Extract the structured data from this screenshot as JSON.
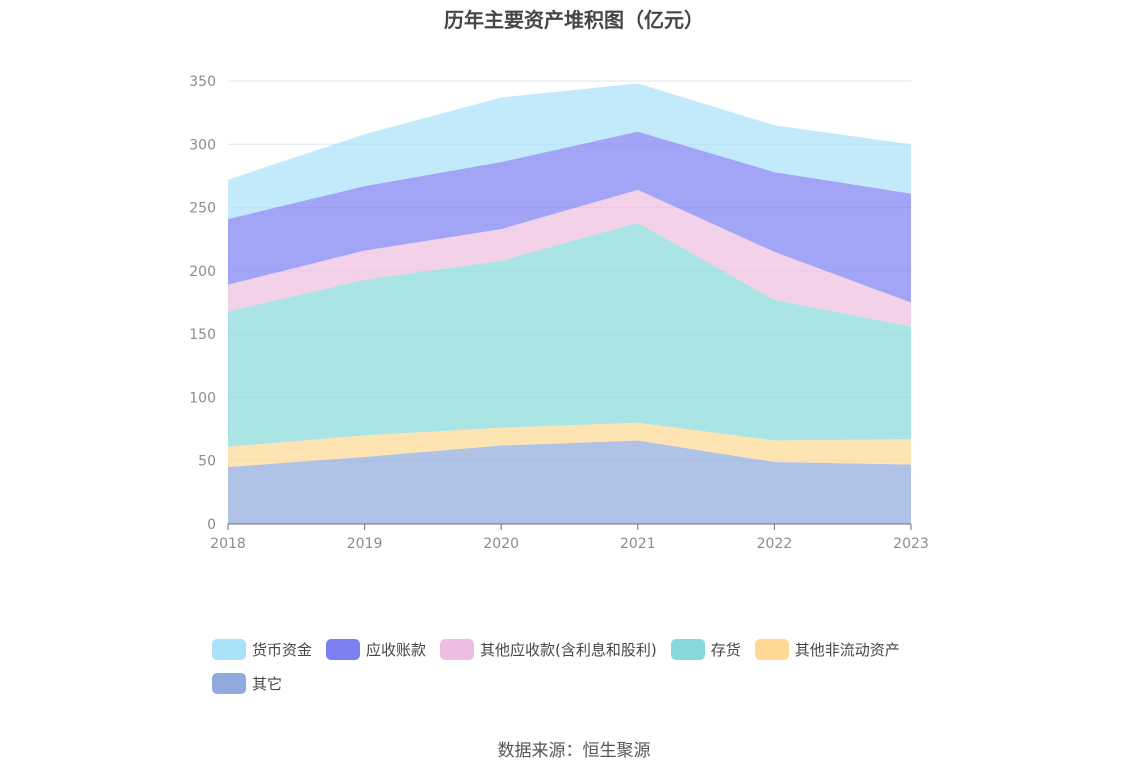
{
  "chart_data": {
    "type": "area",
    "stacked": true,
    "title": "历年主要资产堆积图（亿元）",
    "source": "数据来源：恒生聚源",
    "x": [
      "2018",
      "2019",
      "2020",
      "2021",
      "2022",
      "2023"
    ],
    "ylim": [
      0,
      350
    ],
    "yticks": [
      "0",
      "50",
      "100",
      "150",
      "200",
      "250",
      "300",
      "350"
    ],
    "grid": true,
    "legend_position": "bottom",
    "series": [
      {
        "name": "其它",
        "color": "#8faadc",
        "values": [
          45,
          53,
          62,
          66,
          49,
          47
        ]
      },
      {
        "name": "其他非流动资产",
        "color": "#ffd993",
        "values": [
          16,
          17,
          14,
          14,
          17,
          20
        ]
      },
      {
        "name": "存货",
        "color": "#88d8d9",
        "values": [
          107,
          123,
          132,
          158,
          111,
          89
        ]
      },
      {
        "name": "其他应收款(含利息和股利)",
        "color": "#ecbde0",
        "values": [
          21,
          23,
          25,
          26,
          38,
          19
        ]
      },
      {
        "name": "应收账款",
        "color": "#7b7ff2",
        "values": [
          52,
          51,
          53,
          46,
          63,
          86
        ]
      },
      {
        "name": "货币资金",
        "color": "#a9e1f8",
        "values": [
          31,
          41,
          51,
          38,
          37,
          39
        ]
      }
    ],
    "legend_order": [
      "货币资金",
      "应收账款",
      "其他应收款(含利息和股利)",
      "存货",
      "其他非流动资产",
      "其它"
    ]
  }
}
